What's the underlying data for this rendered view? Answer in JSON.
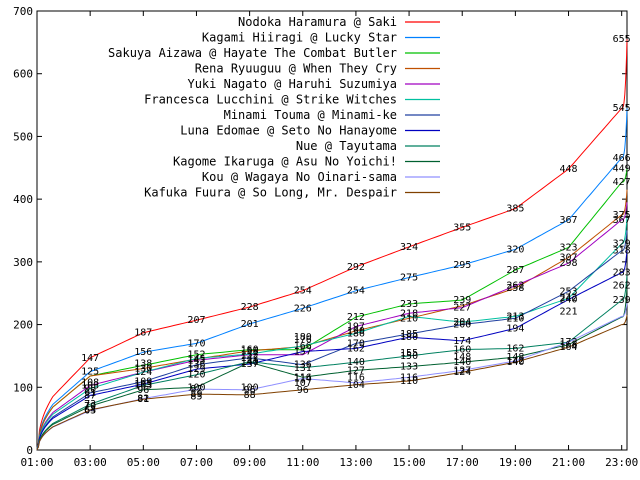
{
  "chart_data": {
    "type": "line",
    "xlabel": "",
    "ylabel": "",
    "title": "",
    "grid": false,
    "legend_position": "top-right",
    "x_range": [
      1,
      23.2
    ],
    "ylim": [
      0,
      700
    ],
    "x_ticks": [
      1,
      3,
      5,
      7,
      9,
      11,
      13,
      15,
      17,
      19,
      21,
      23
    ],
    "x_tick_labels": [
      "01:00",
      "03:00",
      "05:00",
      "07:00",
      "09:00",
      "11:00",
      "13:00",
      "15:00",
      "17:00",
      "19:00",
      "21:00",
      "23:00"
    ],
    "y_ticks": [
      0,
      100,
      200,
      300,
      400,
      500,
      600,
      700
    ],
    "y_tick_labels": [
      "0",
      "100",
      "200",
      "300",
      "400",
      "500",
      "600",
      "700"
    ],
    "label_hours": [
      3,
      5,
      7,
      9,
      11,
      13,
      15,
      17,
      19,
      21,
      23
    ],
    "series": [
      {
        "name": "Nodoka Haramura @ Saki",
        "color": "#ff0000",
        "start": 10,
        "values": [
          147,
          187,
          207,
          228,
          254,
          292,
          324,
          355,
          385,
          448,
          545
        ],
        "end": 655
      },
      {
        "name": "Kagami Hiiragi @ Lucky Star",
        "color": "#0080ff",
        "start": 9,
        "values": [
          125,
          156,
          170,
          201,
          226,
          254,
          275,
          295,
          320,
          367,
          466
        ],
        "end": 545
      },
      {
        "name": "Sakuya Aizawa @ Hayate The Combat Butler",
        "color": "#00c000",
        "start": 8,
        "values": [
          118,
          135,
          152,
          160,
          160,
          212,
          233,
          239,
          287,
          323,
          427
        ],
        "end": 449
      },
      {
        "name": "Rena Ryuuguu @ When They Cry",
        "color": "#c05000",
        "start": 8,
        "values": [
          118,
          130,
          145,
          158,
          165,
          190,
          210,
          230,
          258,
          307,
          375
        ],
        "end": 415
      },
      {
        "name": "Yuki Nagato @ Haruhi Suzumiya",
        "color": "#a000c0",
        "start": 7,
        "values": [
          103,
          124,
          143,
          152,
          152,
          197,
          218,
          227,
          262,
          298,
          367
        ],
        "end": 395
      },
      {
        "name": "Francesca Lucchini @ Strike Witches",
        "color": "#00c0a0",
        "start": 7,
        "values": [
          98,
          124,
          146,
          153,
          166,
          186,
          213,
          204,
          213,
          242,
          329
        ],
        "end": 372
      },
      {
        "name": "Minami Touma @ Minami-ke",
        "color": "#2040a0",
        "start": 6,
        "values": [
          91,
          109,
          136,
          147,
          136,
          170,
          185,
          200,
          210,
          253,
          318
        ],
        "end": 350
      },
      {
        "name": "Luna Edomae @ Seto No Hanayome",
        "color": "#0000c0",
        "start": 6,
        "values": [
          87,
          105,
          129,
          137,
          157,
          162,
          180,
          174,
          194,
          240,
          283
        ],
        "end": 320
      },
      {
        "name": "Nue @ Tayutama",
        "color": "#008060",
        "start": 5,
        "values": [
          73,
          103,
          120,
          141,
          131,
          140,
          150,
          160,
          162,
          172,
          239
        ],
        "end": 280
      },
      {
        "name": "Kagome Ikaruga @ Asu No Yoichi!",
        "color": "#006030",
        "start": 5,
        "values": [
          70,
          96,
          100,
          140,
          116,
          127,
          133,
          140,
          148,
          168,
          212
        ],
        "end": 262
      },
      {
        "name": "Kou @ Wagaya No Oinari-sama",
        "color": "#9090ff",
        "start": 4,
        "values": [
          63,
          82,
          97,
          96,
          114,
          107,
          116,
          127,
          142,
          172,
          213
        ],
        "end": 234
      },
      {
        "name": "Kafuka Fuura @ So Long, Mr. Despair",
        "color": "#804000",
        "start": 4,
        "values": [
          64,
          81,
          89,
          88,
          96,
          104,
          110,
          124,
          140,
          164,
          200
        ],
        "end": 215
      }
    ],
    "annotations": [
      {
        "x": 3,
        "y": 147,
        "text": "147"
      },
      {
        "x": 5,
        "y": 187,
        "text": "187"
      },
      {
        "x": 7,
        "y": 207,
        "text": "207"
      },
      {
        "x": 9,
        "y": 228,
        "text": "228"
      },
      {
        "x": 11,
        "y": 254,
        "text": "254"
      },
      {
        "x": 13,
        "y": 292,
        "text": "292"
      },
      {
        "x": 15,
        "y": 324,
        "text": "324"
      },
      {
        "x": 17,
        "y": 355,
        "text": "355"
      },
      {
        "x": 19,
        "y": 385,
        "text": "385"
      },
      {
        "x": 21,
        "y": 448,
        "text": "448"
      },
      {
        "x": 23,
        "y": 655,
        "text": "655"
      },
      {
        "x": 3,
        "y": 125,
        "text": "125"
      },
      {
        "x": 5,
        "y": 156,
        "text": "156"
      },
      {
        "x": 7,
        "y": 170,
        "text": "170"
      },
      {
        "x": 9,
        "y": 201,
        "text": "201"
      },
      {
        "x": 11,
        "y": 226,
        "text": "226"
      },
      {
        "x": 13,
        "y": 254,
        "text": "254"
      },
      {
        "x": 15,
        "y": 275,
        "text": "275"
      },
      {
        "x": 17,
        "y": 295,
        "text": "295"
      },
      {
        "x": 19,
        "y": 320,
        "text": "320"
      },
      {
        "x": 21,
        "y": 367,
        "text": "367"
      },
      {
        "x": 23,
        "y": 545,
        "text": "545"
      },
      {
        "x": 3,
        "y": 108,
        "text": "108"
      },
      {
        "x": 5,
        "y": 138,
        "text": "138"
      },
      {
        "x": 7,
        "y": 152,
        "text": "152"
      },
      {
        "x": 9,
        "y": 160,
        "text": "160"
      },
      {
        "x": 11,
        "y": 180,
        "text": "180"
      },
      {
        "x": 13,
        "y": 212,
        "text": "212"
      },
      {
        "x": 15,
        "y": 233,
        "text": "233"
      },
      {
        "x": 17,
        "y": 239,
        "text": "239"
      },
      {
        "x": 19,
        "y": 287,
        "text": "287"
      },
      {
        "x": 21,
        "y": 323,
        "text": "323"
      },
      {
        "x": 23,
        "y": 466,
        "text": "466"
      },
      {
        "x": 5,
        "y": 130,
        "text": "130"
      },
      {
        "x": 7,
        "y": 145,
        "text": "145"
      },
      {
        "x": 9,
        "y": 158,
        "text": "158"
      },
      {
        "x": 11,
        "y": 176,
        "text": "176"
      },
      {
        "x": 13,
        "y": 197,
        "text": "197"
      },
      {
        "x": 15,
        "y": 218,
        "text": "218"
      },
      {
        "x": 17,
        "y": 227,
        "text": "227"
      },
      {
        "x": 19,
        "y": 262,
        "text": "262"
      },
      {
        "x": 21,
        "y": 307,
        "text": "307"
      },
      {
        "x": 23,
        "y": 449,
        "text": "449"
      },
      {
        "x": 3,
        "y": 103,
        "text": "103"
      },
      {
        "x": 5,
        "y": 124,
        "text": "124"
      },
      {
        "x": 7,
        "y": 143,
        "text": "143"
      },
      {
        "x": 9,
        "y": 152,
        "text": "152"
      },
      {
        "x": 11,
        "y": 166,
        "text": "166"
      },
      {
        "x": 13,
        "y": 190,
        "text": "190"
      },
      {
        "x": 15,
        "y": 210,
        "text": "210"
      },
      {
        "x": 17,
        "y": 204,
        "text": "204"
      },
      {
        "x": 19,
        "y": 258,
        "text": "258"
      },
      {
        "x": 21,
        "y": 298,
        "text": "298"
      },
      {
        "x": 23,
        "y": 427,
        "text": "427"
      },
      {
        "x": 3,
        "y": 98,
        "text": "98"
      },
      {
        "x": 5,
        "y": 109,
        "text": "109"
      },
      {
        "x": 7,
        "y": 136,
        "text": "136"
      },
      {
        "x": 9,
        "y": 147,
        "text": "147"
      },
      {
        "x": 11,
        "y": 157,
        "text": "157"
      },
      {
        "x": 13,
        "y": 186,
        "text": "186"
      },
      {
        "x": 15,
        "y": 180,
        "text": "180"
      },
      {
        "x": 17,
        "y": 200,
        "text": "200"
      },
      {
        "x": 19,
        "y": 213,
        "text": "213"
      },
      {
        "x": 21,
        "y": 253,
        "text": "253"
      },
      {
        "x": 23,
        "y": 375,
        "text": "375"
      },
      {
        "x": 3,
        "y": 91,
        "text": "91"
      },
      {
        "x": 5,
        "y": 105,
        "text": "105"
      },
      {
        "x": 7,
        "y": 129,
        "text": "129"
      },
      {
        "x": 9,
        "y": 137,
        "text": "137"
      },
      {
        "x": 11,
        "y": 136,
        "text": "136"
      },
      {
        "x": 13,
        "y": 170,
        "text": "170"
      },
      {
        "x": 15,
        "y": 185,
        "text": "185"
      },
      {
        "x": 17,
        "y": 174,
        "text": "174"
      },
      {
        "x": 19,
        "y": 210,
        "text": "210"
      },
      {
        "x": 21,
        "y": 242,
        "text": "242"
      },
      {
        "x": 23,
        "y": 367,
        "text": "367"
      },
      {
        "x": 3,
        "y": 87,
        "text": "87"
      },
      {
        "x": 5,
        "y": 103,
        "text": "103"
      },
      {
        "x": 7,
        "y": 120,
        "text": "120"
      },
      {
        "x": 9,
        "y": 141,
        "text": "141"
      },
      {
        "x": 11,
        "y": 131,
        "text": "131"
      },
      {
        "x": 13,
        "y": 162,
        "text": "162"
      },
      {
        "x": 15,
        "y": 150,
        "text": "150"
      },
      {
        "x": 17,
        "y": 160,
        "text": "160"
      },
      {
        "x": 19,
        "y": 194,
        "text": "194"
      },
      {
        "x": 21,
        "y": 240,
        "text": "240"
      },
      {
        "x": 23,
        "y": 329,
        "text": "329"
      },
      {
        "x": 3,
        "y": 73,
        "text": "73"
      },
      {
        "x": 5,
        "y": 96,
        "text": "96"
      },
      {
        "x": 7,
        "y": 100,
        "text": "100"
      },
      {
        "x": 9,
        "y": 140,
        "text": "140"
      },
      {
        "x": 11,
        "y": 116,
        "text": "116"
      },
      {
        "x": 13,
        "y": 140,
        "text": "140"
      },
      {
        "x": 15,
        "y": 133,
        "text": "133"
      },
      {
        "x": 17,
        "y": 140,
        "text": "140"
      },
      {
        "x": 19,
        "y": 162,
        "text": "162"
      },
      {
        "x": 21,
        "y": 221,
        "text": "221"
      },
      {
        "x": 23,
        "y": 318,
        "text": "318"
      },
      {
        "x": 3,
        "y": 70,
        "text": "70"
      },
      {
        "x": 5,
        "y": 82,
        "text": "82"
      },
      {
        "x": 7,
        "y": 97,
        "text": "97"
      },
      {
        "x": 9,
        "y": 96,
        "text": "96"
      },
      {
        "x": 11,
        "y": 114,
        "text": "114"
      },
      {
        "x": 13,
        "y": 127,
        "text": "127"
      },
      {
        "x": 15,
        "y": 116,
        "text": "116"
      },
      {
        "x": 17,
        "y": 127,
        "text": "127"
      },
      {
        "x": 19,
        "y": 148,
        "text": "148"
      },
      {
        "x": 21,
        "y": 172,
        "text": "172"
      },
      {
        "x": 23,
        "y": 283,
        "text": "283"
      },
      {
        "x": 3,
        "y": 64,
        "text": "64"
      },
      {
        "x": 5,
        "y": 81,
        "text": "81"
      },
      {
        "x": 7,
        "y": 89,
        "text": "89"
      },
      {
        "x": 9,
        "y": 88,
        "text": "88"
      },
      {
        "x": 11,
        "y": 107,
        "text": "107"
      },
      {
        "x": 13,
        "y": 104,
        "text": "104"
      },
      {
        "x": 15,
        "y": 110,
        "text": "110"
      },
      {
        "x": 17,
        "y": 124,
        "text": "124"
      },
      {
        "x": 19,
        "y": 142,
        "text": "142"
      },
      {
        "x": 21,
        "y": 168,
        "text": "168"
      },
      {
        "x": 23,
        "y": 262,
        "text": "262"
      },
      {
        "x": 3,
        "y": 63,
        "text": "63"
      },
      {
        "x": 7,
        "y": 85,
        "text": "85"
      },
      {
        "x": 9,
        "y": 100,
        "text": "100"
      },
      {
        "x": 11,
        "y": 96,
        "text": "96"
      },
      {
        "x": 13,
        "y": 116,
        "text": "116"
      },
      {
        "x": 15,
        "y": 155,
        "text": "155"
      },
      {
        "x": 17,
        "y": 148,
        "text": "148"
      },
      {
        "x": 19,
        "y": 140,
        "text": "140"
      },
      {
        "x": 21,
        "y": 164,
        "text": "164"
      },
      {
        "x": 23,
        "y": 239,
        "text": "239"
      }
    ]
  }
}
